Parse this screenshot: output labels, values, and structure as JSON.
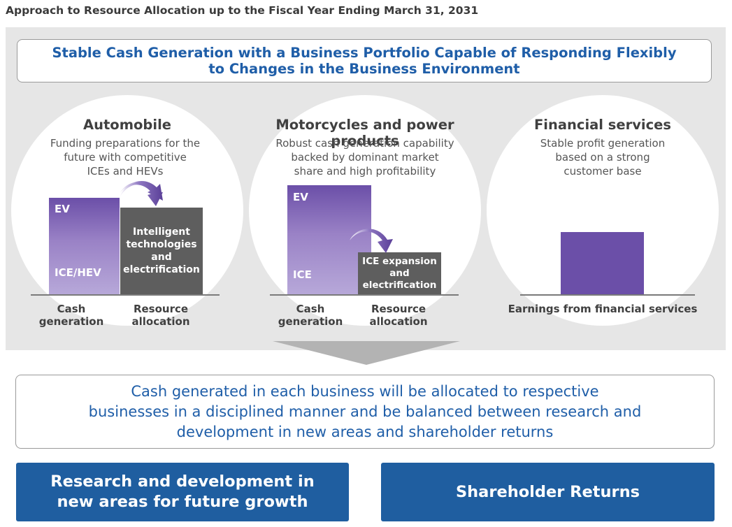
{
  "page_title": "Approach to Resource Allocation up to the Fiscal Year Ending March 31, 2031",
  "headline": {
    "line1": "Stable Cash Generation with a Business Portfolio Capable of Responding Flexibly",
    "line2": "to Changes in the Business Environment"
  },
  "segments": {
    "automobile": {
      "title": "Automobile",
      "desc": [
        "Funding preparations for the",
        "future with competitive",
        "ICEs and HEVs"
      ],
      "bar_cash": {
        "top_label": "EV",
        "bottom_label": "ICE/HEV"
      },
      "bar_alloc": [
        "Intelligent",
        "technologies",
        "and",
        "electrification"
      ],
      "axis": {
        "cash": [
          "Cash",
          "generation"
        ],
        "alloc": [
          "Resource",
          "allocation"
        ]
      }
    },
    "motorcycles": {
      "title": "Motorcycles and power products",
      "desc": [
        "Robust cash generation capability",
        "backed by dominant market",
        "share and high profitability"
      ],
      "bar_cash": {
        "top_label": "EV",
        "bottom_label": "ICE"
      },
      "bar_alloc": [
        "ICE expansion",
        "and",
        "electrification"
      ],
      "axis": {
        "cash": [
          "Cash",
          "generation"
        ],
        "alloc": [
          "Resource",
          "allocation"
        ]
      }
    },
    "financial": {
      "title": "Financial services",
      "desc": [
        "Stable profit generation",
        "based on a strong",
        "customer base"
      ],
      "axis": "Earnings from financial services"
    }
  },
  "summary": [
    "Cash generated in each business will be allocated to respective",
    "businesses in a disciplined manner and be balanced between research and",
    "development in new areas and shareholder returns"
  ],
  "outcomes": {
    "rnd": [
      "Research and development in",
      "new areas for future growth"
    ],
    "returns": "Shareholder Returns"
  },
  "colors": {
    "accent_blue": "#1f5ea8",
    "button_blue": "#1f5ea0",
    "purple": "#6b4fa8",
    "alloc_gray": "#5e5e5e",
    "panel_gray": "#e6e6e6"
  }
}
